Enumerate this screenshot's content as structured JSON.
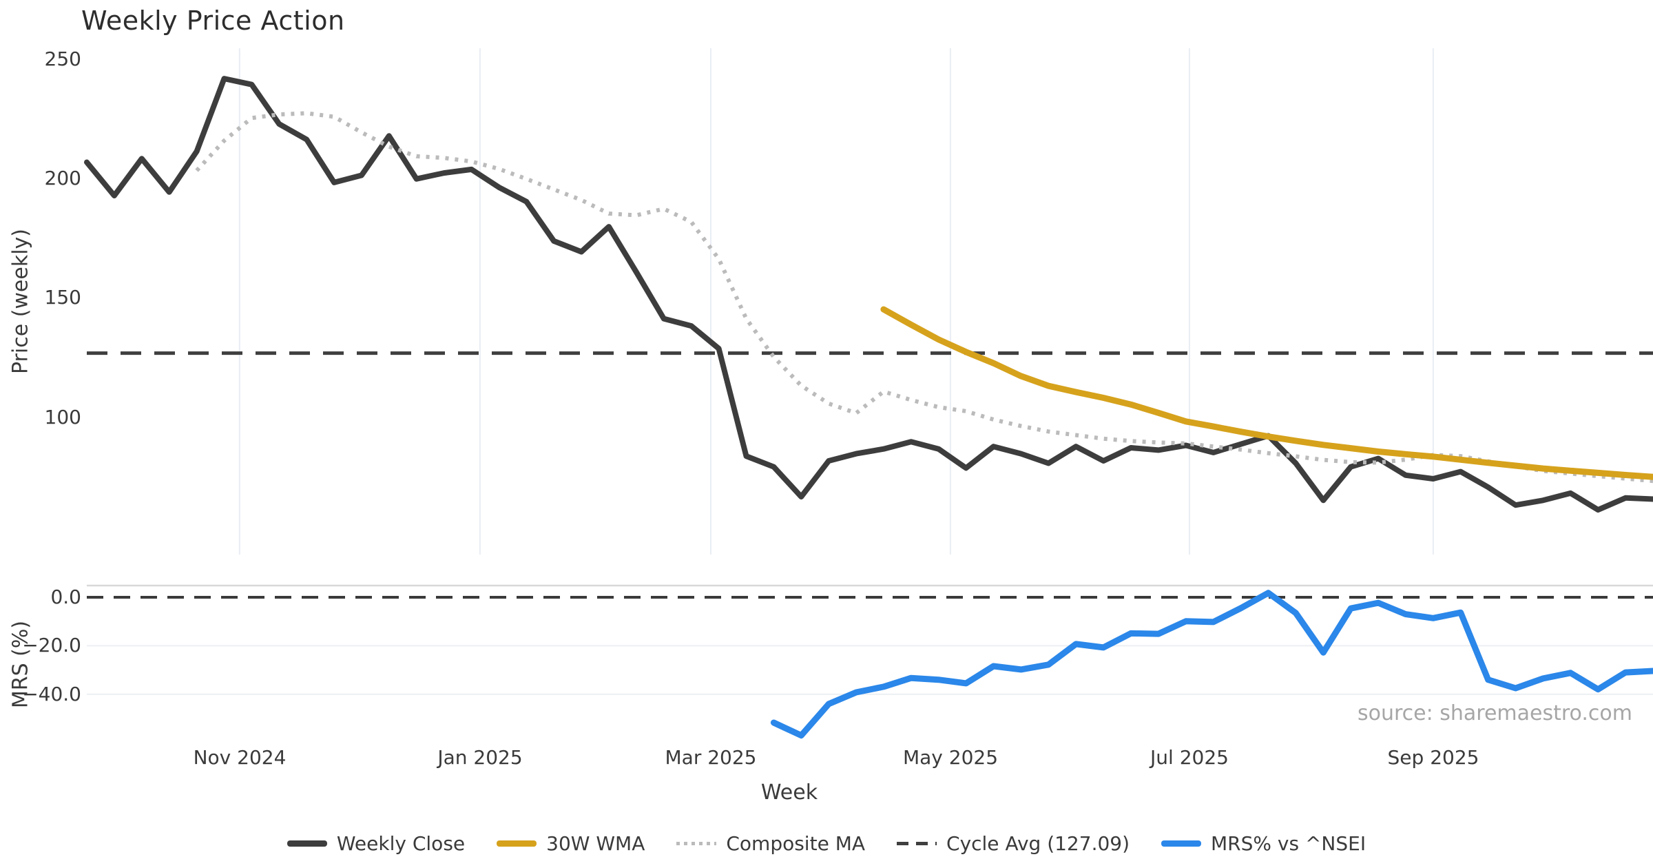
{
  "title": "Weekly Price Action",
  "source_note": "source: sharemaestro.com",
  "colors": {
    "close": "#3d3d3d",
    "wma": "#d6a21c",
    "composite": "#bbbbbb",
    "cycle": "#3f3f3f",
    "mrs": "#2b87e9",
    "grid_vertical": "#e9edf4",
    "grid_horizontal": "#eceff3",
    "spine": "#d8d8d8",
    "zero_dash": "#3a3a3a"
  },
  "x_axis": {
    "title": "Week",
    "ticks": [
      {
        "label": "Nov 2024",
        "week": 5.56
      },
      {
        "label": "Jan 2025",
        "week": 14.31
      },
      {
        "label": "Mar 2025",
        "week": 22.71
      },
      {
        "label": "May 2025",
        "week": 31.43
      },
      {
        "label": "Jul 2025",
        "week": 40.13
      },
      {
        "label": "Sep 2025",
        "week": 49.0
      }
    ]
  },
  "legend": {
    "items": [
      {
        "label": "Weekly Close",
        "style": "solid",
        "color": "close"
      },
      {
        "label": "30W WMA",
        "style": "solid",
        "color": "wma"
      },
      {
        "label": "Composite MA",
        "style": "dotted",
        "color": "composite"
      },
      {
        "label": "Cycle Avg (127.09)",
        "style": "dashed",
        "color": "cycle"
      },
      {
        "label": "MRS% vs ^NSEI",
        "style": "solid",
        "color": "mrs"
      }
    ]
  },
  "chart_data": {
    "type": "line",
    "x_unit": "weekly index (58 weeks, ~Sep 2024 to ~Oct 2025)",
    "weeks": 58,
    "panels": [
      {
        "name": "price",
        "ylabel": "Price (weekly)",
        "ylim": [
          42.8,
          254.7
        ],
        "yticks": [
          {
            "v": 250,
            "label": "250"
          },
          {
            "v": 200,
            "label": "200"
          },
          {
            "v": 150,
            "label": "150"
          },
          {
            "v": 100,
            "label": "100"
          }
        ]
      },
      {
        "name": "mrs",
        "ylabel": "MRS (%)",
        "ylim": [
          -59.1,
          4.83
        ],
        "yticks": [
          {
            "v": 0,
            "label": "0.0"
          },
          {
            "v": -20,
            "label": "−20.0"
          },
          {
            "v": -40,
            "label": "−40.0"
          }
        ]
      }
    ],
    "cycle_avg": 127.09,
    "series": [
      {
        "name": "Weekly Close",
        "panel": "price",
        "color": "close",
        "dash": "solid",
        "width": 8,
        "start_index": 0,
        "values": [
          207,
          193,
          208.5,
          194.5,
          211.5,
          242,
          239.5,
          223,
          216.5,
          198.5,
          201.5,
          218,
          200,
          202.5,
          204,
          196.5,
          190.5,
          174,
          169.5,
          180,
          161,
          141.5,
          138.5,
          129,
          84,
          79.5,
          67,
          82,
          85,
          87,
          90,
          87,
          79,
          88,
          85,
          81,
          88,
          82,
          87.5,
          86.5,
          88.5,
          85.5,
          89,
          92.5,
          81,
          65.5,
          79.5,
          83,
          76,
          74.5,
          77.5,
          71,
          63.5,
          65.5,
          68.5,
          61.5,
          66.5,
          66
        ]
      },
      {
        "name": "Composite MA",
        "panel": "price",
        "color": "composite",
        "dash": "dotted",
        "width": 6,
        "start_index": 4,
        "values": [
          203.5,
          216,
          225.5,
          227,
          227.5,
          226,
          219.5,
          213.5,
          209.5,
          208.8,
          207.3,
          204.2,
          200,
          195.6,
          191.2,
          185.5,
          184.8,
          187.5,
          182,
          166.5,
          141.5,
          125.5,
          113.5,
          106,
          102,
          111,
          107.5,
          104.5,
          102.8,
          99.3,
          96.6,
          94.3,
          92.8,
          91.3,
          90.3,
          89.7,
          89.3,
          88,
          86.7,
          85.2,
          83.9,
          82.4,
          81.5,
          81.3,
          82.5,
          84.5,
          84,
          81.8,
          79.7,
          77.8,
          76.7,
          75.6,
          74.6,
          73.6
        ]
      },
      {
        "name": "30W WMA",
        "panel": "price",
        "color": "wma",
        "dash": "solid",
        "width": 9,
        "start_index": 29,
        "values": [
          145.4,
          139,
          132.8,
          127.6,
          122.9,
          117.5,
          113.4,
          110.8,
          108.4,
          105.6,
          102.1,
          98.5,
          96.4,
          94.2,
          92.2,
          90.4,
          88.7,
          87.3,
          85.9,
          84.8,
          83.8,
          82.5,
          81.2,
          80,
          78.8,
          77.9,
          77,
          76.1,
          75.3
        ]
      },
      {
        "name": "MRS% vs ^NSEI",
        "panel": "mrs",
        "color": "mrs",
        "dash": "solid",
        "width": 9,
        "start_index": 25,
        "values": [
          -51.7,
          -57,
          -44,
          -39.2,
          -36.9,
          -33.3,
          -34,
          -35.5,
          -28.4,
          -29.8,
          -27.8,
          -19.3,
          -20.7,
          -14.9,
          -15.1,
          -9.9,
          -10.2,
          -4.5,
          1.8,
          -6.5,
          -22.8,
          -4.6,
          -2.3,
          -7,
          -8.6,
          -6.3,
          -34,
          -37.5,
          -33.5,
          -31.2,
          -38,
          -31,
          -30.4
        ]
      }
    ]
  }
}
